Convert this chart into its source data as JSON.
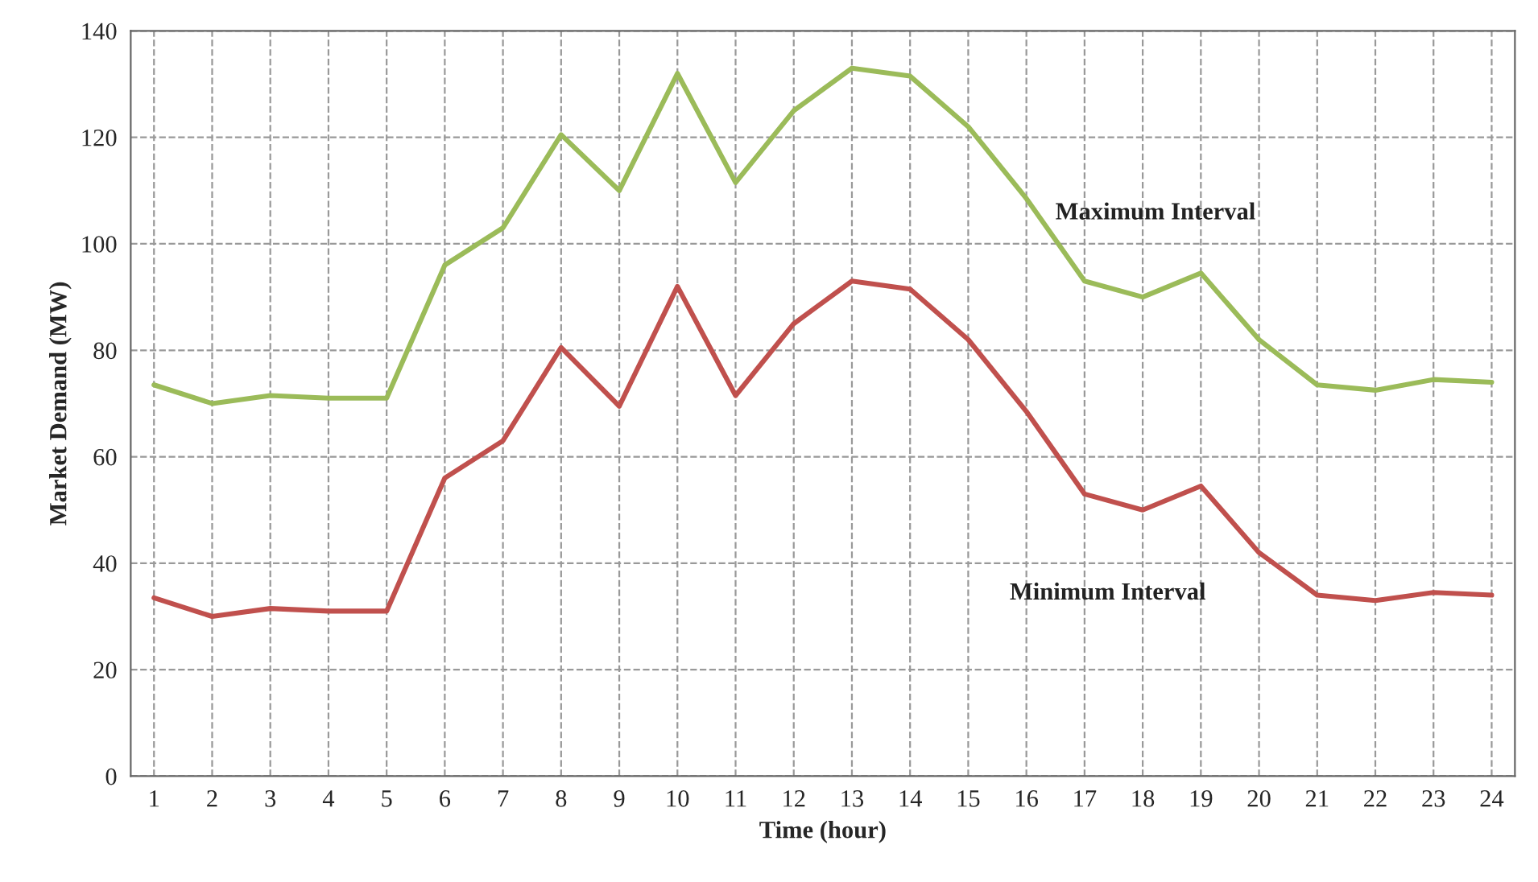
{
  "chart_data": {
    "type": "line",
    "xlabel": "Time (hour)",
    "ylabel": "Market Demand (MW)",
    "x": [
      1,
      2,
      3,
      4,
      5,
      6,
      7,
      8,
      9,
      10,
      11,
      12,
      13,
      14,
      15,
      16,
      17,
      18,
      19,
      20,
      21,
      22,
      23,
      24
    ],
    "xlim": [
      0.6,
      24.4
    ],
    "xticks": [
      1,
      2,
      3,
      4,
      5,
      6,
      7,
      8,
      9,
      10,
      11,
      12,
      13,
      14,
      15,
      16,
      17,
      18,
      19,
      20,
      21,
      22,
      23,
      24
    ],
    "ylim": [
      0,
      140
    ],
    "yticks": [
      0,
      20,
      40,
      60,
      80,
      100,
      120,
      140
    ],
    "grid": true,
    "marker": "none",
    "line_style": "solid",
    "series": [
      {
        "name": "Maximum Interval",
        "color": "#9bbb59",
        "values": [
          73.5,
          70,
          71.5,
          71,
          71,
          96,
          103,
          120.5,
          110,
          132,
          111.5,
          125,
          133,
          131.5,
          122,
          108.5,
          93,
          90,
          94.5,
          82,
          73.5,
          72.5,
          74.5,
          74
        ]
      },
      {
        "name": "Minimum Interval",
        "color": "#c0504d",
        "values": [
          33.5,
          30,
          31.5,
          31,
          31,
          56,
          63,
          80.5,
          69.5,
          92,
          71.5,
          85,
          93,
          91.5,
          82,
          68.5,
          53,
          50,
          54.5,
          42,
          34,
          33,
          34.5,
          34
        ]
      }
    ]
  }
}
